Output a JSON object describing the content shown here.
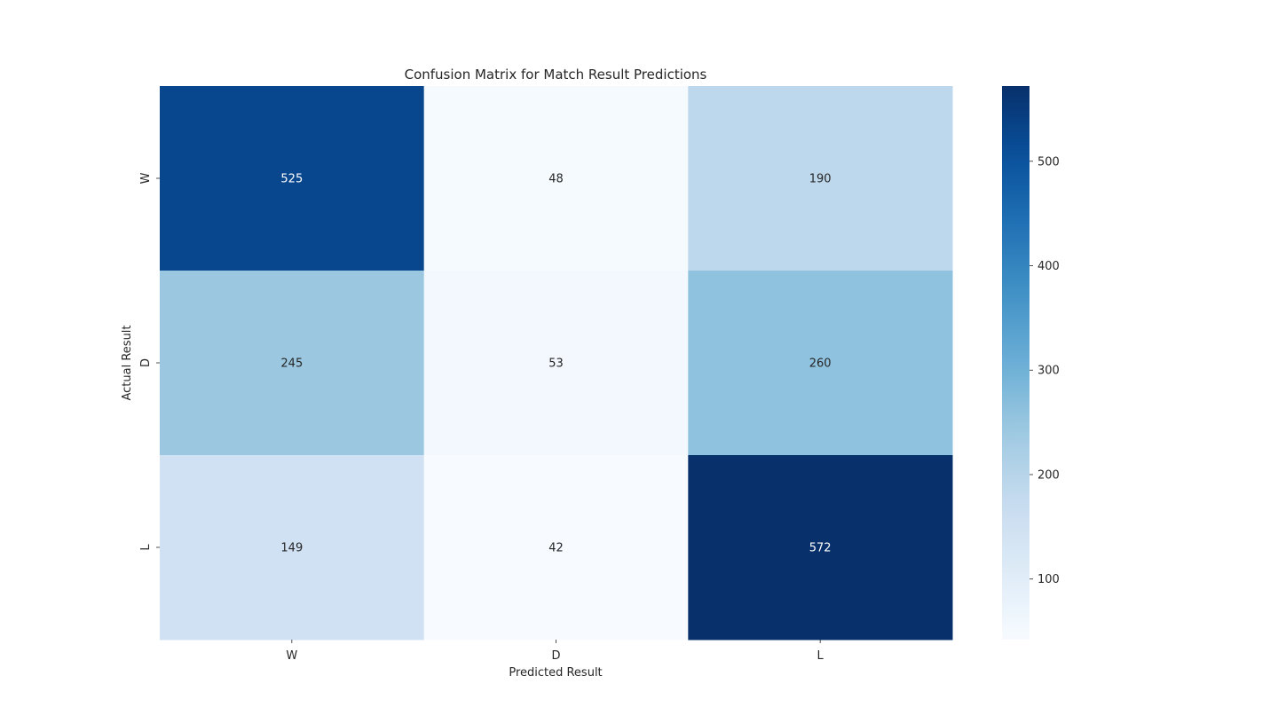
{
  "chart_data": {
    "type": "heatmap",
    "title": "Confusion Matrix for Match Result Predictions",
    "xlabel": "Predicted Result",
    "ylabel": "Actual Result",
    "x_categories": [
      "W",
      "D",
      "L"
    ],
    "y_categories": [
      "W",
      "D",
      "L"
    ],
    "values": [
      [
        525,
        48,
        190
      ],
      [
        245,
        53,
        260
      ],
      [
        149,
        42,
        572
      ]
    ],
    "colormap": "Blues",
    "colorbar": {
      "range": [
        42,
        572
      ],
      "ticks": [
        100,
        200,
        300,
        400,
        500
      ]
    },
    "grid": false,
    "legend": "colorbar-right"
  }
}
